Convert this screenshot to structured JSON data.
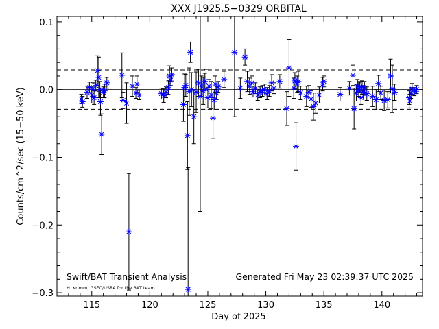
{
  "chart_data": {
    "type": "scatter",
    "title": "XXX J1925.5−0329 ORBITAL",
    "xlabel": "Day of 2025",
    "ylabel": "Counts/cm^2/sec (15−50 keV)",
    "xlim": [
      112,
      143.5
    ],
    "ylim": [
      -0.305,
      0.108
    ],
    "xticks": [
      115,
      120,
      125,
      130,
      135,
      140
    ],
    "xtick_labels": [
      "115",
      "120",
      "125",
      "130",
      "135",
      "140"
    ],
    "yticks": [
      -0.3,
      -0.2,
      -0.1,
      0.0,
      0.1
    ],
    "ytick_labels": [
      "−0.3",
      "−0.2",
      "−0.1",
      "0.0",
      "0.1"
    ],
    "reference_lines": [
      {
        "y": 0.0,
        "style": "solid"
      },
      {
        "y": 0.029,
        "style": "dashed"
      },
      {
        "y": -0.029,
        "style": "dashed"
      }
    ],
    "marker_color": "#0000ff",
    "errorbar_color": "#000000",
    "points": [
      {
        "x": 114.1,
        "y": -0.014,
        "err": 0.007
      },
      {
        "x": 114.2,
        "y": -0.018,
        "err": 0.008
      },
      {
        "x": 114.6,
        "y": -0.004,
        "err": 0.009
      },
      {
        "x": 114.8,
        "y": 0.003,
        "err": 0.008
      },
      {
        "x": 115.0,
        "y": -0.008,
        "err": 0.012
      },
      {
        "x": 115.1,
        "y": 0.0,
        "err": 0.01
      },
      {
        "x": 115.2,
        "y": -0.012,
        "err": 0.01
      },
      {
        "x": 115.35,
        "y": 0.006,
        "err": 0.008
      },
      {
        "x": 115.5,
        "y": 0.028,
        "err": 0.022
      },
      {
        "x": 115.6,
        "y": 0.018,
        "err": 0.03
      },
      {
        "x": 115.7,
        "y": 0.0,
        "err": 0.012
      },
      {
        "x": 115.75,
        "y": -0.018,
        "err": 0.02
      },
      {
        "x": 115.85,
        "y": -0.066,
        "err": 0.03
      },
      {
        "x": 116.0,
        "y": -0.004,
        "err": 0.008
      },
      {
        "x": 116.1,
        "y": -0.002,
        "err": 0.01
      },
      {
        "x": 116.3,
        "y": 0.01,
        "err": 0.008
      },
      {
        "x": 117.6,
        "y": 0.021,
        "err": 0.033
      },
      {
        "x": 117.7,
        "y": -0.016,
        "err": 0.012
      },
      {
        "x": 118.0,
        "y": -0.02,
        "err": 0.03
      },
      {
        "x": 118.2,
        "y": -0.21,
        "err": 0.086
      },
      {
        "x": 118.5,
        "y": 0.005,
        "err": 0.015
      },
      {
        "x": 118.8,
        "y": -0.005,
        "err": 0.008
      },
      {
        "x": 118.9,
        "y": 0.008,
        "err": 0.012
      },
      {
        "x": 119.1,
        "y": -0.008,
        "err": 0.007
      },
      {
        "x": 121.0,
        "y": -0.006,
        "err": 0.008
      },
      {
        "x": 121.2,
        "y": -0.009,
        "err": 0.01
      },
      {
        "x": 121.4,
        "y": -0.004,
        "err": 0.008
      },
      {
        "x": 121.6,
        "y": 0.003,
        "err": 0.01
      },
      {
        "x": 121.7,
        "y": 0.02,
        "err": 0.015
      },
      {
        "x": 121.8,
        "y": 0.014,
        "err": 0.008
      },
      {
        "x": 121.9,
        "y": 0.022,
        "err": 0.01
      },
      {
        "x": 122.9,
        "y": -0.022,
        "err": 0.025
      },
      {
        "x": 123.0,
        "y": 0.003,
        "err": 0.02
      },
      {
        "x": 123.1,
        "y": 0.006,
        "err": 0.016
      },
      {
        "x": 123.25,
        "y": -0.068,
        "err": 0.05
      },
      {
        "x": 123.3,
        "y": -0.295,
        "err": 0.18
      },
      {
        "x": 123.4,
        "y": -0.003,
        "err": 0.035
      },
      {
        "x": 123.5,
        "y": 0.055,
        "err": 0.015
      },
      {
        "x": 123.6,
        "y": 0.0,
        "err": 0.025
      },
      {
        "x": 123.8,
        "y": -0.04,
        "err": 0.04
      },
      {
        "x": 124.0,
        "y": -0.004,
        "err": 0.03
      },
      {
        "x": 124.2,
        "y": 0.01,
        "err": 0.02
      },
      {
        "x": 124.35,
        "y": -0.01,
        "err": 0.17
      },
      {
        "x": 124.45,
        "y": 0.005,
        "err": 0.015
      },
      {
        "x": 124.6,
        "y": -0.002,
        "err": 0.02
      },
      {
        "x": 124.75,
        "y": 0.012,
        "err": 0.012
      },
      {
        "x": 124.85,
        "y": 0.0,
        "err": 0.03
      },
      {
        "x": 125.0,
        "y": -0.012,
        "err": 0.015
      },
      {
        "x": 125.1,
        "y": 0.005,
        "err": 0.01
      },
      {
        "x": 125.3,
        "y": -0.008,
        "err": 0.02
      },
      {
        "x": 125.45,
        "y": -0.042,
        "err": 0.03
      },
      {
        "x": 125.55,
        "y": -0.015,
        "err": 0.015
      },
      {
        "x": 125.65,
        "y": 0.008,
        "err": 0.012
      },
      {
        "x": 125.75,
        "y": -0.005,
        "err": 0.01
      },
      {
        "x": 125.9,
        "y": 0.004,
        "err": 0.008
      },
      {
        "x": 126.4,
        "y": 0.015,
        "err": 0.012
      },
      {
        "x": 127.3,
        "y": 0.055,
        "err": 0.095
      },
      {
        "x": 127.8,
        "y": 0.002,
        "err": 0.015
      },
      {
        "x": 128.2,
        "y": 0.048,
        "err": 0.012
      },
      {
        "x": 128.4,
        "y": 0.012,
        "err": 0.015
      },
      {
        "x": 128.6,
        "y": 0.005,
        "err": 0.012
      },
      {
        "x": 128.8,
        "y": 0.01,
        "err": 0.01
      },
      {
        "x": 128.9,
        "y": -0.003,
        "err": 0.008
      },
      {
        "x": 129.1,
        "y": 0.002,
        "err": 0.008
      },
      {
        "x": 129.3,
        "y": -0.008,
        "err": 0.008
      },
      {
        "x": 129.5,
        "y": -0.004,
        "err": 0.008
      },
      {
        "x": 129.7,
        "y": -0.002,
        "err": 0.008
      },
      {
        "x": 129.9,
        "y": 0.0,
        "err": 0.008
      },
      {
        "x": 130.1,
        "y": -0.006,
        "err": 0.009
      },
      {
        "x": 130.3,
        "y": -0.002,
        "err": 0.008
      },
      {
        "x": 130.5,
        "y": 0.01,
        "err": 0.012
      },
      {
        "x": 130.7,
        "y": 0.002,
        "err": 0.008
      },
      {
        "x": 131.2,
        "y": 0.012,
        "err": 0.01
      },
      {
        "x": 131.8,
        "y": -0.028,
        "err": 0.025
      },
      {
        "x": 132.0,
        "y": 0.032,
        "err": 0.042
      },
      {
        "x": 132.4,
        "y": 0.002,
        "err": 0.015
      },
      {
        "x": 132.5,
        "y": 0.013,
        "err": 0.012
      },
      {
        "x": 132.6,
        "y": -0.084,
        "err": 0.035
      },
      {
        "x": 132.7,
        "y": 0.008,
        "err": 0.012
      },
      {
        "x": 132.8,
        "y": 0.012,
        "err": 0.015
      },
      {
        "x": 133.0,
        "y": -0.005,
        "err": 0.01
      },
      {
        "x": 133.5,
        "y": -0.01,
        "err": 0.015
      },
      {
        "x": 133.7,
        "y": -0.004,
        "err": 0.01
      },
      {
        "x": 133.9,
        "y": -0.014,
        "err": 0.012
      },
      {
        "x": 134.1,
        "y": -0.025,
        "err": 0.02
      },
      {
        "x": 134.3,
        "y": -0.02,
        "err": 0.015
      },
      {
        "x": 134.6,
        "y": -0.008,
        "err": 0.012
      },
      {
        "x": 134.9,
        "y": 0.008,
        "err": 0.01
      },
      {
        "x": 135.0,
        "y": 0.012,
        "err": 0.008
      },
      {
        "x": 136.4,
        "y": -0.007,
        "err": 0.01
      },
      {
        "x": 137.2,
        "y": 0.002,
        "err": 0.01
      },
      {
        "x": 137.5,
        "y": 0.021,
        "err": 0.015
      },
      {
        "x": 137.6,
        "y": -0.028,
        "err": 0.03
      },
      {
        "x": 137.8,
        "y": -0.005,
        "err": 0.012
      },
      {
        "x": 137.9,
        "y": 0.005,
        "err": 0.01
      },
      {
        "x": 138.0,
        "y": 0.0,
        "err": 0.01
      },
      {
        "x": 138.1,
        "y": 0.004,
        "err": 0.008
      },
      {
        "x": 138.2,
        "y": -0.012,
        "err": 0.01
      },
      {
        "x": 138.3,
        "y": 0.003,
        "err": 0.01
      },
      {
        "x": 138.4,
        "y": -0.004,
        "err": 0.01
      },
      {
        "x": 138.5,
        "y": 0.002,
        "err": 0.01
      },
      {
        "x": 138.7,
        "y": -0.006,
        "err": 0.01
      },
      {
        "x": 139.2,
        "y": -0.01,
        "err": 0.015
      },
      {
        "x": 139.5,
        "y": -0.015,
        "err": 0.015
      },
      {
        "x": 139.7,
        "y": 0.009,
        "err": 0.012
      },
      {
        "x": 139.9,
        "y": -0.005,
        "err": 0.01
      },
      {
        "x": 140.2,
        "y": -0.016,
        "err": 0.015
      },
      {
        "x": 140.5,
        "y": -0.015,
        "err": 0.012
      },
      {
        "x": 140.75,
        "y": 0.02,
        "err": 0.025
      },
      {
        "x": 140.9,
        "y": 0.001,
        "err": 0.035
      },
      {
        "x": 141.1,
        "y": -0.004,
        "err": 0.012
      },
      {
        "x": 142.35,
        "y": -0.012,
        "err": 0.01
      },
      {
        "x": 142.4,
        "y": -0.017,
        "err": 0.01
      },
      {
        "x": 142.5,
        "y": -0.005,
        "err": 0.008
      },
      {
        "x": 142.6,
        "y": 0.001,
        "err": 0.008
      },
      {
        "x": 142.8,
        "y": -0.003,
        "err": 0.006
      },
      {
        "x": 143.0,
        "y": 0.0,
        "err": 0.006
      }
    ]
  },
  "footer": {
    "left_title": "Swift/BAT Transient Analysis",
    "left_credit": "H. Krimm, GSFC/USRA for the BAT team",
    "right_generated": "Generated Fri May 23 02:39:37 UTC 2025"
  }
}
